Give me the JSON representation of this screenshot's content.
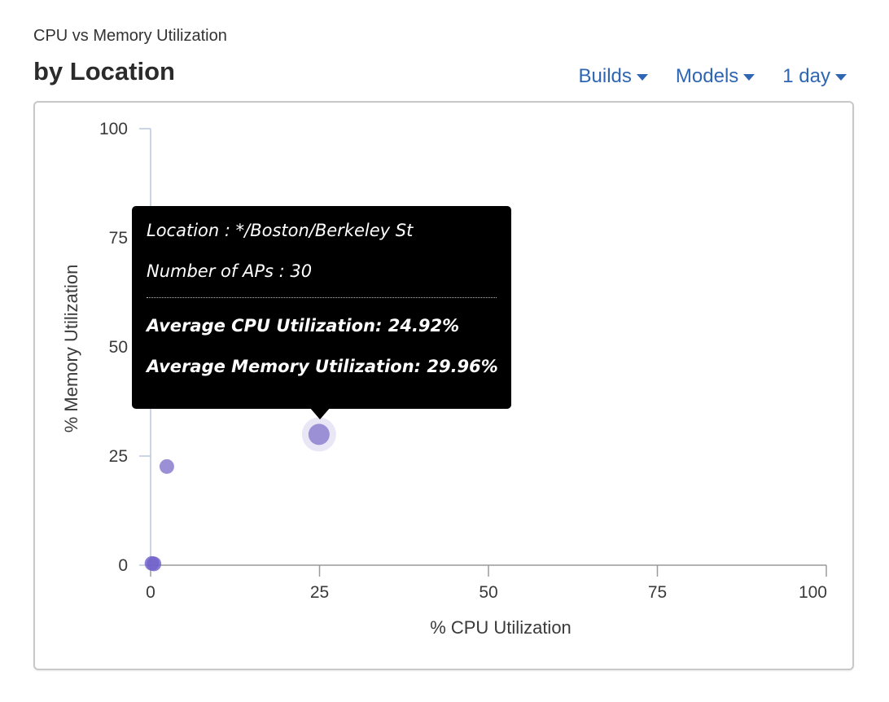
{
  "header": {
    "subtitle": "CPU vs Memory Utilization",
    "title": "by Location"
  },
  "filters": [
    {
      "label": "Builds"
    },
    {
      "label": "Models"
    },
    {
      "label": "1 day"
    }
  ],
  "tooltip": {
    "location": "Location : */Boston/Berkeley St",
    "aps": "Number of APs : 30",
    "avg_cpu": "Average CPU Utilization: 24.92%",
    "avg_mem": "Average Memory Utilization: 29.96%"
  },
  "colors": {
    "accent": "#2f66b3",
    "point": "#9b90d6",
    "point_dark": "#7061c9",
    "axis": "#b9c7e0"
  },
  "chart_data": {
    "type": "scatter",
    "xlabel": "% CPU Utilization",
    "ylabel": "% Memory Utilization",
    "xlim": [
      0,
      100
    ],
    "ylim": [
      0,
      100
    ],
    "xticks": [
      "0",
      "25",
      "50",
      "75",
      "100"
    ],
    "yticks": [
      "0",
      "25",
      "50",
      "75",
      "100"
    ],
    "grid": false,
    "points": [
      {
        "x": 24.92,
        "y": 29.96,
        "highlighted": true
      },
      {
        "x": 2.4,
        "y": 22.6
      },
      {
        "x": 0.2,
        "y": 0.4
      },
      {
        "x": 0.5,
        "y": 0.3
      }
    ]
  }
}
